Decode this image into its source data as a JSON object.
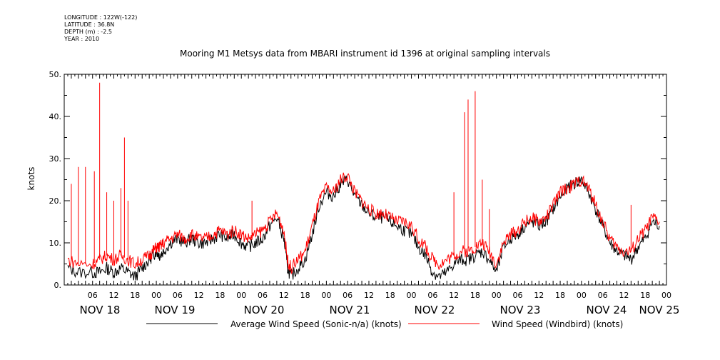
{
  "meta": {
    "longitude": "LONGITUDE : 122W(-122)",
    "latitude": "LATITUDE : 36.8N",
    "depth": "DEPTH (m) : -2.5",
    "year": "YEAR : 2010"
  },
  "chart_data": {
    "type": "line",
    "title": "Mooring M1 Metsys data from MBARI instrument id 1396 at original sampling intervals",
    "ylabel": "knots",
    "xlabel": "",
    "ylim": [
      0,
      50
    ],
    "yticks": [
      0,
      10,
      20,
      30,
      40,
      50
    ],
    "ytick_labels": [
      "0.",
      "10.",
      "20.",
      "30.",
      "40.",
      "50."
    ],
    "xlim_hours": [
      0,
      170
    ],
    "xlim_label": "2010-11-17 22:00 to 2010-11-25 00:00",
    "hour_tick_labels": [
      "06",
      "12",
      "18",
      "00",
      "06",
      "12",
      "18",
      "00",
      "06",
      "12",
      "18",
      "00",
      "06",
      "12",
      "18",
      "00",
      "06",
      "12",
      "18",
      "00",
      "06",
      "12",
      "18",
      "00",
      "06",
      "12",
      "18",
      "00"
    ],
    "day_labels": [
      "NOV 18",
      "NOV 19",
      "NOV 20",
      "NOV 21",
      "NOV 22",
      "NOV 23",
      "NOV 24",
      "NOV 25"
    ],
    "grid": false,
    "legend": "bottom",
    "series": [
      {
        "name": "Average Wind Speed (Sonic-n/a) (knots)",
        "color": "#000000",
        "x": [
          1,
          4,
          8,
          10,
          12,
          14,
          16,
          18,
          20,
          22,
          24,
          25,
          26,
          27,
          28,
          30,
          32,
          34,
          36,
          38,
          40,
          42,
          44,
          46,
          48,
          50,
          52,
          54,
          56,
          58,
          60,
          62,
          63,
          64,
          66,
          68,
          70,
          72,
          74,
          76,
          78,
          80,
          82,
          84,
          86,
          88,
          90,
          92,
          94,
          96,
          98,
          100,
          102,
          104,
          106,
          108,
          110,
          112,
          114,
          116,
          118,
          120,
          122,
          124,
          126,
          128,
          130,
          132,
          134,
          136,
          138,
          140,
          142,
          144,
          146,
          148,
          150,
          152,
          154,
          156,
          158,
          160,
          162,
          164,
          166,
          168
        ],
        "y": [
          4,
          3,
          3,
          3,
          4,
          3,
          4,
          3,
          2,
          4,
          6,
          7,
          8,
          7,
          8,
          10,
          11,
          10,
          11,
          10,
          10,
          11,
          12,
          11,
          12,
          10,
          9,
          10,
          11,
          14,
          16,
          11,
          4,
          2,
          4,
          6,
          12,
          19,
          22,
          21,
          24,
          25,
          21,
          19,
          17,
          16,
          16,
          15,
          14,
          13,
          12,
          9,
          7,
          3,
          2,
          3,
          5,
          6,
          6,
          7,
          8,
          6,
          3,
          9,
          11,
          12,
          14,
          15,
          14,
          15,
          18,
          21,
          23,
          24,
          25,
          22,
          18,
          14,
          10,
          8,
          7,
          6,
          9,
          11,
          15,
          14
        ]
      },
      {
        "name": "Wind Speed (Windbird) (knots)",
        "color": "#ff0000",
        "x": [
          1,
          4,
          8,
          10,
          12,
          14,
          16,
          18,
          20,
          22,
          24,
          25,
          26,
          27,
          28,
          30,
          32,
          34,
          36,
          38,
          40,
          42,
          44,
          46,
          48,
          50,
          52,
          54,
          56,
          58,
          60,
          62,
          63,
          64,
          66,
          68,
          70,
          72,
          74,
          76,
          78,
          80,
          82,
          84,
          86,
          88,
          90,
          92,
          94,
          96,
          98,
          100,
          102,
          104,
          106,
          108,
          110,
          112,
          114,
          116,
          118,
          120,
          122,
          124,
          126,
          128,
          130,
          132,
          134,
          136,
          138,
          140,
          142,
          144,
          146,
          148,
          150,
          152,
          154,
          156,
          158,
          160,
          162,
          164,
          166,
          168
        ],
        "y": [
          6,
          5,
          5,
          6,
          7,
          6,
          7,
          6,
          5,
          6,
          7,
          8,
          9,
          9,
          10,
          11,
          12,
          11,
          12,
          11,
          11,
          12,
          13,
          12,
          13,
          12,
          11,
          12,
          13,
          15,
          17,
          13,
          6,
          4,
          6,
          8,
          14,
          20,
          23,
          22,
          25,
          26,
          22,
          20,
          18,
          17,
          17,
          16,
          15,
          15,
          14,
          11,
          9,
          6,
          5,
          6,
          7,
          8,
          8,
          9,
          10,
          8,
          5,
          10,
          12,
          13,
          15,
          16,
          15,
          16,
          19,
          22,
          23,
          24,
          25,
          23,
          19,
          15,
          11,
          9,
          8,
          8,
          11,
          13,
          16,
          15
        ]
      }
    ],
    "spikes_red": [
      {
        "x": 2,
        "y": 24
      },
      {
        "x": 4,
        "y": 28
      },
      {
        "x": 6,
        "y": 28
      },
      {
        "x": 8.5,
        "y": 27
      },
      {
        "x": 10,
        "y": 48
      },
      {
        "x": 12,
        "y": 22
      },
      {
        "x": 14,
        "y": 20
      },
      {
        "x": 16,
        "y": 23
      },
      {
        "x": 17,
        "y": 35
      },
      {
        "x": 18,
        "y": 20
      },
      {
        "x": 53,
        "y": 20
      },
      {
        "x": 110,
        "y": 22
      },
      {
        "x": 113,
        "y": 41
      },
      {
        "x": 114,
        "y": 44
      },
      {
        "x": 116,
        "y": 46
      },
      {
        "x": 118,
        "y": 25
      },
      {
        "x": 120,
        "y": 18
      },
      {
        "x": 160,
        "y": 19
      }
    ]
  }
}
